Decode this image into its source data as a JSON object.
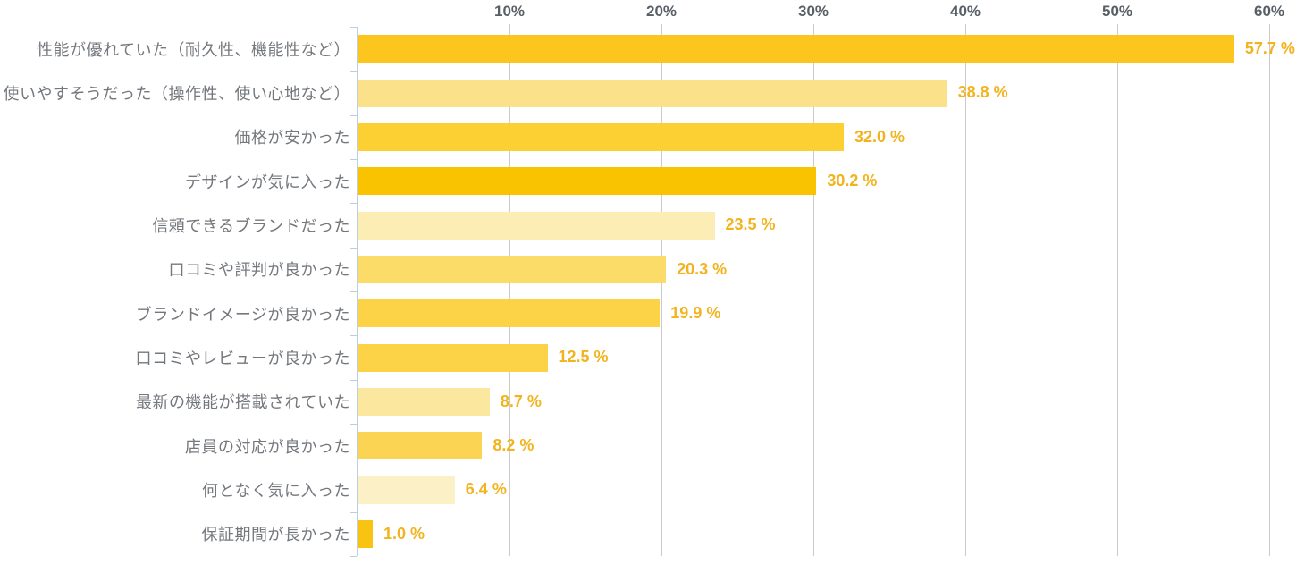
{
  "chart_data": {
    "type": "bar",
    "orientation": "horizontal",
    "categories": [
      "性能が優れていた（耐久性、機能性など）",
      "使いやすそうだった（操作性、使い心地など）",
      "価格が安かった",
      "デザインが気に入った",
      "信頼できるブランドだった",
      "口コミや評判が良かった",
      "ブランドイメージが良かった",
      "口コミやレビューが良かった",
      "最新の機能が搭載されていた",
      "店員の対応が良かった",
      "何となく気に入った",
      "保証期間が長かった"
    ],
    "values": [
      57.7,
      38.8,
      32.0,
      30.2,
      23.5,
      20.3,
      19.9,
      12.5,
      8.7,
      8.2,
      6.4,
      1.0
    ],
    "value_labels": [
      "57.7 %",
      "38.8 %",
      "32.0 %",
      "30.2 %",
      "23.5 %",
      "20.3 %",
      "19.9 %",
      "12.5 %",
      "8.7 %",
      "8.2 %",
      "6.4 %",
      "1.0 %"
    ],
    "bar_colors": [
      "#FCC61E",
      "#FBE189",
      "#FCCF33",
      "#F9C301",
      "#FCEDB5",
      "#FBDC69",
      "#FCD347",
      "#FCD347",
      "#FCE79E",
      "#FCD454",
      "#FCF0C6",
      "#F9C312"
    ],
    "x_ticks": [
      "10%",
      "20%",
      "30%",
      "40%",
      "50%",
      "60%"
    ],
    "x_tick_values": [
      10,
      20,
      30,
      40,
      50,
      60
    ],
    "xlim": [
      0,
      60
    ],
    "grid": true,
    "legend_position": "none",
    "gridline_color": "#CBCBCB",
    "axis_line_color": "#BFCEDD",
    "axis_label_color": "#595F66",
    "category_label_color": "#74787D",
    "value_label_color": "#F2B41E",
    "background_color": "#FFFFFF"
  }
}
